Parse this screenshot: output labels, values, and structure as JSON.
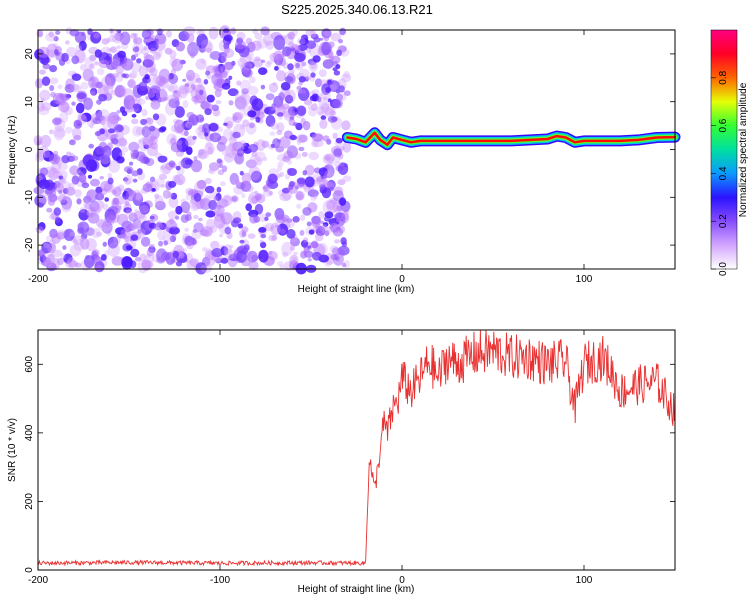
{
  "title": "S225.2025.340.06.13.R21",
  "chart_data": [
    {
      "type": "heatmap",
      "name": "spectrogram",
      "xlabel": "Height of straight line (km)",
      "ylabel": "Frequency (Hz)",
      "xlim": [
        -200,
        150
      ],
      "ylim": [
        -25,
        25
      ],
      "xticks": [
        -200,
        -100,
        0,
        100
      ],
      "yticks": [
        -20,
        -10,
        0,
        10,
        20
      ],
      "grid": false,
      "noise_region": {
        "x": [
          -200,
          -30
        ],
        "y": [
          -25,
          25
        ],
        "amplitude_range": [
          0.0,
          0.55
        ]
      },
      "signal_ridge": {
        "x": [
          -30,
          -25,
          -20,
          -15,
          -12,
          -8,
          -5,
          0,
          5,
          10,
          20,
          40,
          60,
          80,
          85,
          90,
          95,
          100,
          110,
          120,
          130,
          140,
          150
        ],
        "frequency": [
          2.5,
          2.2,
          1.5,
          3.5,
          2.0,
          1.0,
          2.5,
          2.0,
          1.5,
          1.8,
          1.8,
          1.8,
          1.8,
          2.2,
          2.8,
          2.5,
          1.5,
          1.8,
          1.8,
          1.8,
          2.0,
          2.5,
          2.6
        ],
        "peak_amplitude": 0.95
      },
      "colorbar": {
        "label": "Normalized spectral amplitude",
        "range": [
          0.0,
          1.0
        ],
        "ticks": [
          "0.0",
          "0.2",
          "0.4",
          "0.6",
          "0.8"
        ],
        "colors": [
          "#ffffff",
          "#c080ff",
          "#3000ff",
          "#00c0ff",
          "#00ff40",
          "#ffff00",
          "#ff0000",
          "#ff0080"
        ]
      }
    },
    {
      "type": "line",
      "name": "snr",
      "xlabel": "Height of straight line (km)",
      "ylabel": "SNR (10 * v/v)",
      "xlim": [
        -200,
        150
      ],
      "ylim": [
        0,
        700
      ],
      "xticks": [
        -200,
        -100,
        0,
        100
      ],
      "yticks": [
        0,
        200,
        400,
        600
      ],
      "grid": false,
      "color": "#e83030",
      "series": [
        {
          "x": [
            -200,
            -150,
            -100,
            -50,
            -20,
            -18,
            -15,
            -12,
            -10,
            -8,
            -5,
            -2,
            0,
            5,
            10,
            15,
            20,
            25,
            30,
            40,
            50,
            60,
            70,
            80,
            90,
            95,
            100,
            110,
            115,
            120,
            130,
            140,
            150
          ],
          "values": [
            20,
            22,
            20,
            21,
            20,
            330,
            230,
            350,
            430,
            400,
            470,
            500,
            560,
            520,
            560,
            610,
            560,
            620,
            600,
            630,
            640,
            620,
            620,
            600,
            610,
            470,
            600,
            620,
            580,
            520,
            540,
            550,
            460
          ]
        }
      ]
    }
  ]
}
